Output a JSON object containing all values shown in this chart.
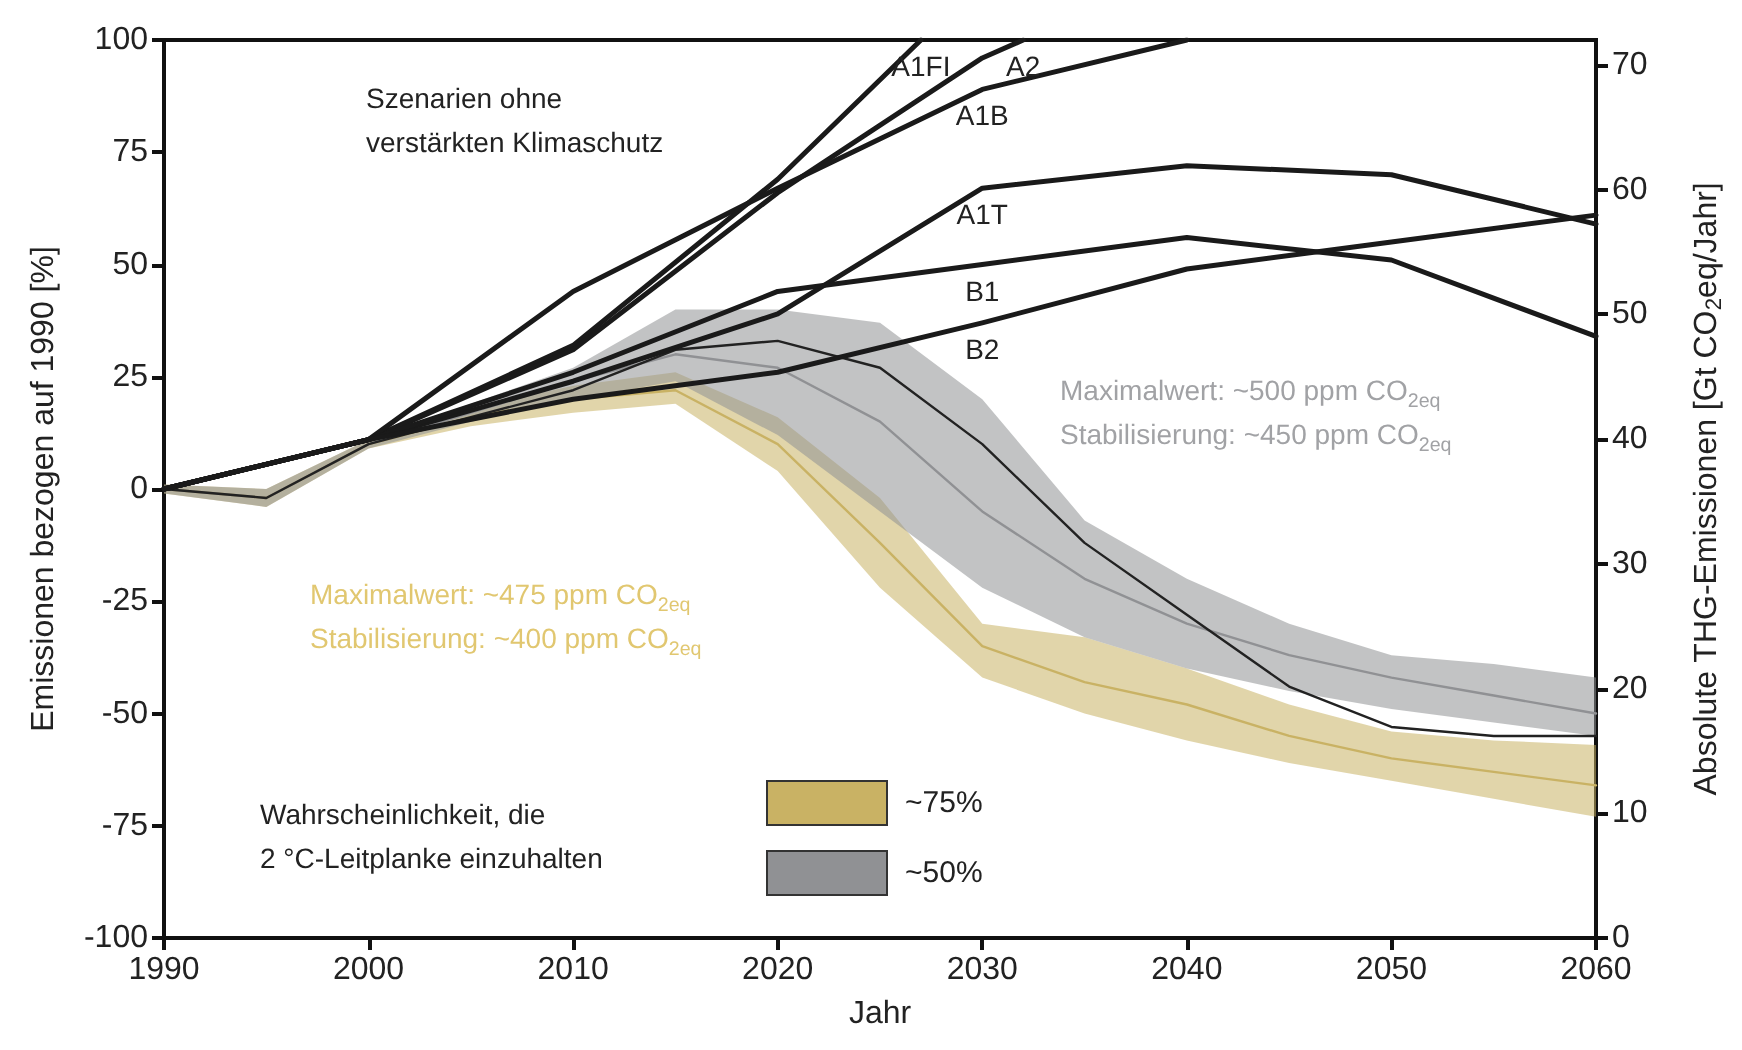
{
  "chart_data": {
    "type": "line",
    "xlabel": "Jahr",
    "ylabel": "Emissionen bezogen auf 1990 [%]",
    "y2label": "Absolute THG-Emissionen [Gt CO$_{2}$eq/Jahr]",
    "xlim": [
      1990,
      2060
    ],
    "xticks": [
      1990,
      2000,
      2010,
      2020,
      2030,
      2040,
      2050,
      2060
    ],
    "ylim": [
      -100,
      100
    ],
    "yticks": [
      -100,
      -75,
      -50,
      -25,
      0,
      25,
      50,
      75,
      100
    ],
    "y2lim": [
      0,
      72
    ],
    "y2ticks": [
      0,
      10,
      20,
      30,
      40,
      50,
      60,
      70
    ],
    "grid": false,
    "legend": "bottom",
    "marker": "none",
    "annotations": [
      "Szenarien ohne\nverstärkten Klimaschutz",
      "Maximalwert: ~500 ppm CO$_{2eq}$\nStabilisierung: ~450 ppm CO$_{2eq}$",
      "Maximalwert: ~475 ppm CO$_{2eq}$\nStabilisierung: ~400 ppm CO$_{2eq}$",
      "Wahrscheinlichkeit, die\n2 °C-Leitplanke einzuhalten"
    ],
    "series": [
      {
        "name": "~75%",
        "color": "#c9b264",
        "x": [
          1990,
          1995,
          2000,
          2005,
          2010,
          2015,
          2020,
          2025,
          2030,
          2035,
          2040,
          2045,
          2050,
          2055,
          2060
        ],
        "values": [
          0,
          -2,
          10,
          16,
          20,
          22,
          10,
          -12,
          -35,
          -43,
          -48,
          -55,
          -60,
          -63,
          -66
        ],
        "lower": [
          -1,
          -4,
          9,
          14,
          17,
          19,
          4,
          -22,
          -42,
          -50,
          -56,
          -61,
          -65,
          -69,
          -73
        ],
        "upper": [
          1,
          0,
          11,
          18,
          23,
          26,
          16,
          -2,
          -30,
          -33,
          -40,
          -48,
          -54,
          -56,
          -57
        ]
      },
      {
        "name": "~50%",
        "color": "#909194",
        "x": [
          1990,
          1995,
          2000,
          2005,
          2010,
          2015,
          2020,
          2025,
          2030,
          2035,
          2040,
          2045,
          2050,
          2055,
          2060
        ],
        "values": [
          0,
          -2,
          10,
          17,
          24,
          30,
          27,
          15,
          -5,
          -20,
          -30,
          -37,
          -42,
          -46,
          -50
        ],
        "lower": [
          -1,
          -4,
          9,
          15,
          20,
          24,
          12,
          -5,
          -22,
          -33,
          -40,
          -45,
          -49,
          -52,
          -55
        ],
        "upper": [
          1,
          0,
          11,
          19,
          27,
          40,
          40,
          37,
          20,
          -7,
          -20,
          -30,
          -37,
          -39,
          -42
        ]
      },
      {
        "color": "#222222",
        "x": [
          1990,
          1995,
          2000,
          2005,
          2010,
          2015,
          2020,
          2025,
          2030,
          2035,
          2040,
          2045,
          2050,
          2055,
          2060
        ],
        "values": [
          0,
          -2,
          10,
          16,
          22,
          31,
          33,
          27,
          10,
          -12,
          -28,
          -44,
          -53,
          -55,
          -55
        ]
      },
      {
        "name": "A1FI",
        "color": "#1a1a1a",
        "x": [
          1990,
          2000,
          2010,
          2020,
          2027
        ],
        "values": [
          0,
          11,
          32,
          69,
          100
        ]
      },
      {
        "name": "A2",
        "color": "#1a1a1a",
        "x": [
          1990,
          2000,
          2010,
          2020,
          2030,
          2032
        ],
        "values": [
          0,
          11,
          31,
          66,
          96,
          100
        ]
      },
      {
        "name": "A1B",
        "color": "#1a1a1a",
        "x": [
          1990,
          2000,
          2010,
          2020,
          2030,
          2040
        ],
        "values": [
          0,
          11,
          44,
          67,
          89,
          100
        ]
      },
      {
        "name": "A1T",
        "color": "#1a1a1a",
        "x": [
          1990,
          2000,
          2010,
          2020,
          2030,
          2040,
          2050,
          2060
        ],
        "values": [
          0,
          11,
          24,
          39,
          67,
          72,
          70,
          59
        ]
      },
      {
        "name": "B1",
        "color": "#1a1a1a",
        "x": [
          1990,
          2000,
          2010,
          2020,
          2030,
          2040,
          2050,
          2060
        ],
        "values": [
          0,
          11,
          26,
          44,
          50,
          56,
          51,
          34
        ]
      },
      {
        "name": "B2",
        "color": "#1a1a1a",
        "x": [
          1990,
          2000,
          2010,
          2020,
          2030,
          2040,
          2050,
          2060
        ],
        "values": [
          0,
          11,
          20,
          26,
          37,
          49,
          55,
          61
        ]
      }
    ]
  }
}
